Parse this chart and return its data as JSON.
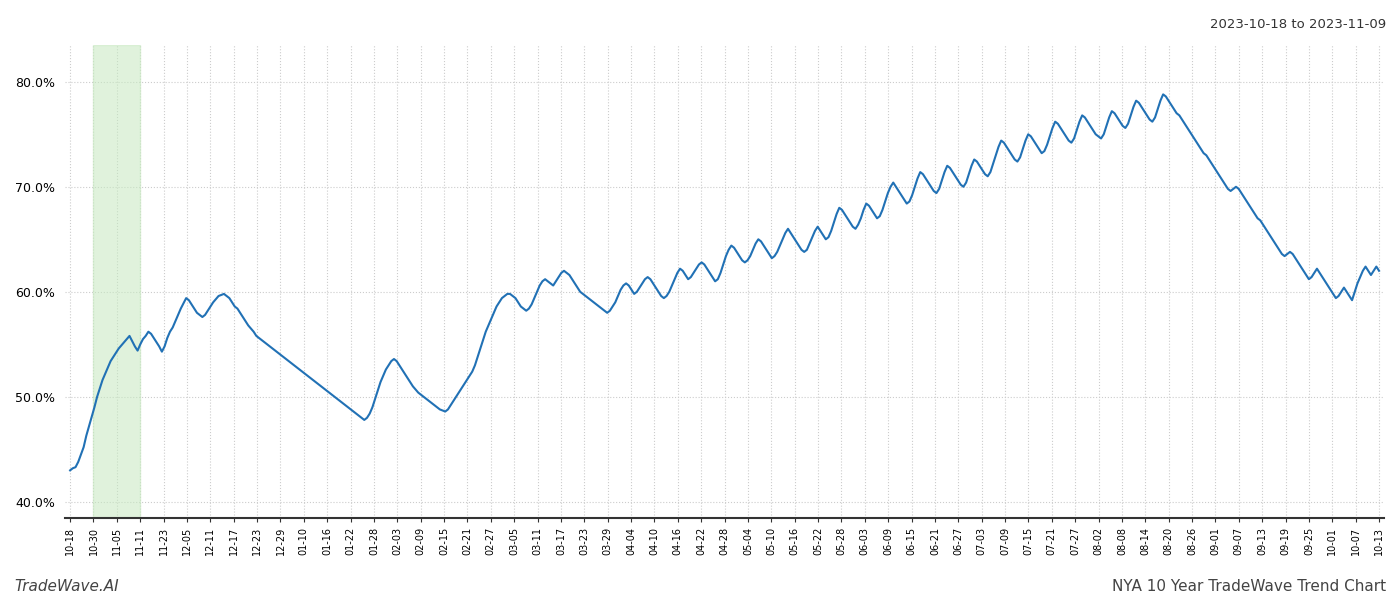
{
  "title_top_right": "2023-10-18 to 2023-11-09",
  "title_bottom_left": "TradeWave.AI",
  "title_bottom_right": "NYA 10 Year TradeWave Trend Chart",
  "line_color": "#2171b5",
  "line_width": 1.5,
  "background_color": "#ffffff",
  "highlight_color": "#c7e9c0",
  "highlight_alpha": 0.55,
  "ylim": [
    0.385,
    0.835
  ],
  "yticks": [
    0.4,
    0.5,
    0.6,
    0.7,
    0.8
  ],
  "grid_color": "#cccccc",
  "x_labels": [
    "10-18",
    "10-30",
    "11-05",
    "11-11",
    "11-23",
    "12-05",
    "12-11",
    "12-17",
    "12-23",
    "12-29",
    "01-10",
    "01-16",
    "01-22",
    "01-28",
    "02-03",
    "02-09",
    "02-15",
    "02-21",
    "02-27",
    "03-05",
    "03-11",
    "03-17",
    "03-23",
    "03-29",
    "04-04",
    "04-10",
    "04-16",
    "04-22",
    "04-28",
    "05-04",
    "05-10",
    "05-16",
    "05-22",
    "05-28",
    "06-03",
    "06-09",
    "06-15",
    "06-21",
    "06-27",
    "07-03",
    "07-09",
    "07-15",
    "07-21",
    "07-27",
    "08-02",
    "08-08",
    "08-14",
    "08-20",
    "08-26",
    "09-01",
    "09-07",
    "09-13",
    "09-19",
    "09-25",
    "10-01",
    "10-07",
    "10-13"
  ],
  "num_labels": 57,
  "values": [
    0.43,
    0.432,
    0.433,
    0.438,
    0.445,
    0.452,
    0.463,
    0.472,
    0.481,
    0.49,
    0.5,
    0.508,
    0.516,
    0.522,
    0.528,
    0.534,
    0.538,
    0.542,
    0.546,
    0.549,
    0.552,
    0.555,
    0.558,
    0.553,
    0.548,
    0.544,
    0.55,
    0.555,
    0.558,
    0.562,
    0.56,
    0.556,
    0.552,
    0.548,
    0.543,
    0.548,
    0.556,
    0.562,
    0.566,
    0.572,
    0.578,
    0.584,
    0.589,
    0.594,
    0.592,
    0.588,
    0.584,
    0.58,
    0.578,
    0.576,
    0.578,
    0.582,
    0.586,
    0.59,
    0.593,
    0.596,
    0.597,
    0.598,
    0.596,
    0.594,
    0.59,
    0.586,
    0.584,
    0.58,
    0.576,
    0.572,
    0.568,
    0.565,
    0.562,
    0.558,
    0.556,
    0.554,
    0.552,
    0.55,
    0.548,
    0.546,
    0.544,
    0.542,
    0.54,
    0.538,
    0.536,
    0.534,
    0.532,
    0.53,
    0.528,
    0.526,
    0.524,
    0.522,
    0.52,
    0.518,
    0.516,
    0.514,
    0.512,
    0.51,
    0.508,
    0.506,
    0.504,
    0.502,
    0.5,
    0.498,
    0.496,
    0.494,
    0.492,
    0.49,
    0.488,
    0.486,
    0.484,
    0.482,
    0.48,
    0.478,
    0.48,
    0.484,
    0.49,
    0.498,
    0.506,
    0.514,
    0.52,
    0.526,
    0.53,
    0.534,
    0.536,
    0.534,
    0.53,
    0.526,
    0.522,
    0.518,
    0.514,
    0.51,
    0.507,
    0.504,
    0.502,
    0.5,
    0.498,
    0.496,
    0.494,
    0.492,
    0.49,
    0.488,
    0.487,
    0.486,
    0.488,
    0.492,
    0.496,
    0.5,
    0.504,
    0.508,
    0.512,
    0.516,
    0.52,
    0.524,
    0.53,
    0.538,
    0.546,
    0.554,
    0.562,
    0.568,
    0.574,
    0.58,
    0.586,
    0.59,
    0.594,
    0.596,
    0.598,
    0.598,
    0.596,
    0.594,
    0.59,
    0.586,
    0.584,
    0.582,
    0.584,
    0.588,
    0.594,
    0.6,
    0.606,
    0.61,
    0.612,
    0.61,
    0.608,
    0.606,
    0.61,
    0.614,
    0.618,
    0.62,
    0.618,
    0.616,
    0.612,
    0.608,
    0.604,
    0.6,
    0.598,
    0.596,
    0.594,
    0.592,
    0.59,
    0.588,
    0.586,
    0.584,
    0.582,
    0.58,
    0.582,
    0.586,
    0.59,
    0.596,
    0.602,
    0.606,
    0.608,
    0.606,
    0.602,
    0.598,
    0.6,
    0.604,
    0.608,
    0.612,
    0.614,
    0.612,
    0.608,
    0.604,
    0.6,
    0.596,
    0.594,
    0.596,
    0.6,
    0.606,
    0.612,
    0.618,
    0.622,
    0.62,
    0.616,
    0.612,
    0.614,
    0.618,
    0.622,
    0.626,
    0.628,
    0.626,
    0.622,
    0.618,
    0.614,
    0.61,
    0.612,
    0.618,
    0.626,
    0.634,
    0.64,
    0.644,
    0.642,
    0.638,
    0.634,
    0.63,
    0.628,
    0.63,
    0.634,
    0.64,
    0.646,
    0.65,
    0.648,
    0.644,
    0.64,
    0.636,
    0.632,
    0.634,
    0.638,
    0.644,
    0.65,
    0.656,
    0.66,
    0.656,
    0.652,
    0.648,
    0.644,
    0.64,
    0.638,
    0.64,
    0.646,
    0.652,
    0.658,
    0.662,
    0.658,
    0.654,
    0.65,
    0.652,
    0.658,
    0.666,
    0.674,
    0.68,
    0.678,
    0.674,
    0.67,
    0.666,
    0.662,
    0.66,
    0.664,
    0.67,
    0.678,
    0.684,
    0.682,
    0.678,
    0.674,
    0.67,
    0.672,
    0.678,
    0.686,
    0.694,
    0.7,
    0.704,
    0.7,
    0.696,
    0.692,
    0.688,
    0.684,
    0.686,
    0.692,
    0.7,
    0.708,
    0.714,
    0.712,
    0.708,
    0.704,
    0.7,
    0.696,
    0.694,
    0.698,
    0.706,
    0.714,
    0.72,
    0.718,
    0.714,
    0.71,
    0.706,
    0.702,
    0.7,
    0.704,
    0.712,
    0.72,
    0.726,
    0.724,
    0.72,
    0.716,
    0.712,
    0.71,
    0.714,
    0.722,
    0.73,
    0.738,
    0.744,
    0.742,
    0.738,
    0.734,
    0.73,
    0.726,
    0.724,
    0.728,
    0.736,
    0.744,
    0.75,
    0.748,
    0.744,
    0.74,
    0.736,
    0.732,
    0.734,
    0.74,
    0.748,
    0.756,
    0.762,
    0.76,
    0.756,
    0.752,
    0.748,
    0.744,
    0.742,
    0.746,
    0.754,
    0.762,
    0.768,
    0.766,
    0.762,
    0.758,
    0.754,
    0.75,
    0.748,
    0.746,
    0.75,
    0.758,
    0.766,
    0.772,
    0.77,
    0.766,
    0.762,
    0.758,
    0.756,
    0.76,
    0.768,
    0.776,
    0.782,
    0.78,
    0.776,
    0.772,
    0.768,
    0.764,
    0.762,
    0.766,
    0.774,
    0.782,
    0.788,
    0.786,
    0.782,
    0.778,
    0.774,
    0.77,
    0.768,
    0.764,
    0.76,
    0.756,
    0.752,
    0.748,
    0.744,
    0.74,
    0.736,
    0.732,
    0.73,
    0.726,
    0.722,
    0.718,
    0.714,
    0.71,
    0.706,
    0.702,
    0.698,
    0.696,
    0.698,
    0.7,
    0.698,
    0.694,
    0.69,
    0.686,
    0.682,
    0.678,
    0.674,
    0.67,
    0.668,
    0.664,
    0.66,
    0.656,
    0.652,
    0.648,
    0.644,
    0.64,
    0.636,
    0.634,
    0.636,
    0.638,
    0.636,
    0.632,
    0.628,
    0.624,
    0.62,
    0.616,
    0.612,
    0.614,
    0.618,
    0.622,
    0.618,
    0.614,
    0.61,
    0.606,
    0.602,
    0.598,
    0.594,
    0.596,
    0.6,
    0.604,
    0.6,
    0.596,
    0.592,
    0.6,
    0.608,
    0.614,
    0.62,
    0.624,
    0.62,
    0.616,
    0.62,
    0.624,
    0.62
  ],
  "highlight_label_end": "11-05"
}
